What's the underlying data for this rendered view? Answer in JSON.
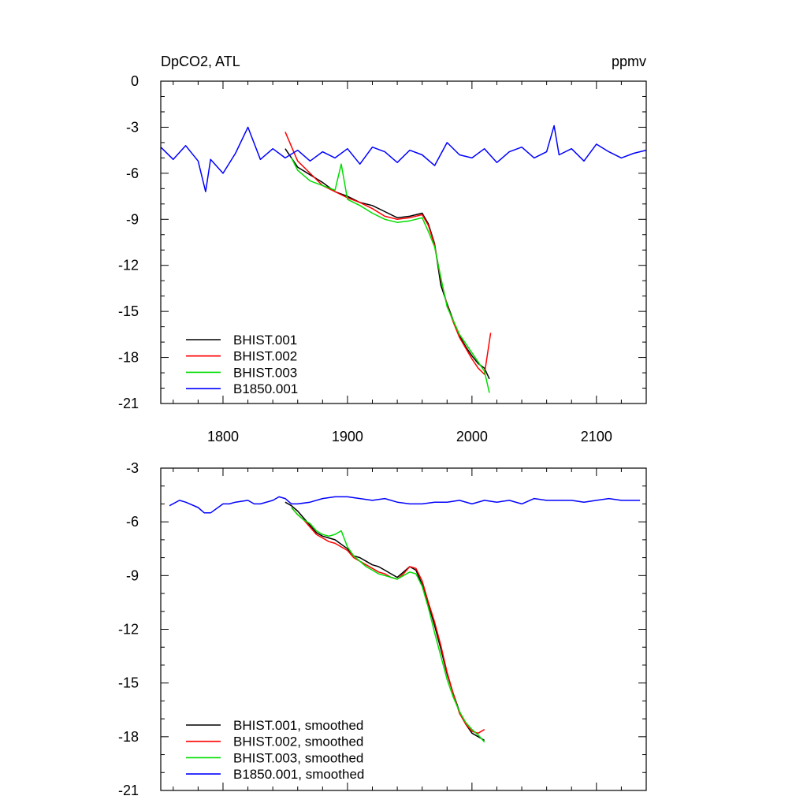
{
  "chart_data": [
    {
      "type": "line",
      "title_left": "DpCO2, ATL",
      "title_right": "ppmv",
      "xlim": [
        1750,
        2140
      ],
      "ylim": [
        -21,
        0
      ],
      "x_ticks": [
        1800,
        1900,
        2000,
        2100
      ],
      "x_tick_labels": [
        "1800",
        "1900",
        "2000",
        "2100"
      ],
      "y_ticks": [
        0,
        -3,
        -6,
        -9,
        -12,
        -15,
        -18,
        -21
      ],
      "y_tick_labels": [
        "0",
        "-3",
        "-6",
        "-9",
        "-12",
        "-15",
        "-18",
        "-21"
      ],
      "legend_position": "bottom-left",
      "series": [
        {
          "name": "BHIST.001",
          "color": "#000000",
          "x": [
            1850,
            1860,
            1870,
            1880,
            1890,
            1900,
            1910,
            1920,
            1930,
            1940,
            1950,
            1960,
            1965,
            1970,
            1975,
            1980,
            1985,
            1990,
            1995,
            2000,
            2005,
            2010,
            2014
          ],
          "values": [
            -4.4,
            -5.6,
            -6.1,
            -6.6,
            -7.2,
            -7.5,
            -7.9,
            -8.1,
            -8.5,
            -8.9,
            -8.8,
            -8.6,
            -9.3,
            -10.6,
            -13.3,
            -14.5,
            -15.6,
            -16.6,
            -17.3,
            -17.9,
            -18.4,
            -18.7,
            -19.4
          ]
        },
        {
          "name": "BHIST.002",
          "color": "#ff0000",
          "x": [
            1850,
            1860,
            1870,
            1880,
            1890,
            1900,
            1910,
            1920,
            1930,
            1940,
            1950,
            1960,
            1965,
            1970,
            1975,
            1980,
            1985,
            1990,
            1995,
            2000,
            2005,
            2010,
            2015
          ],
          "values": [
            -3.3,
            -5.2,
            -6.0,
            -6.8,
            -7.2,
            -7.6,
            -7.9,
            -8.3,
            -8.8,
            -9.0,
            -8.9,
            -8.7,
            -9.4,
            -10.7,
            -12.9,
            -14.6,
            -15.7,
            -16.7,
            -17.4,
            -18.1,
            -18.7,
            -19.1,
            -16.4
          ]
        },
        {
          "name": "BHIST.003",
          "color": "#00dd00",
          "x": [
            1855,
            1860,
            1870,
            1880,
            1890,
            1895,
            1900,
            1910,
            1920,
            1930,
            1940,
            1950,
            1960,
            1965,
            1970,
            1975,
            1980,
            1985,
            1990,
            1995,
            2000,
            2005,
            2010,
            2014
          ],
          "values": [
            -5.0,
            -5.8,
            -6.5,
            -6.8,
            -7.1,
            -5.4,
            -7.7,
            -8.1,
            -8.6,
            -9.0,
            -9.2,
            -9.1,
            -8.9,
            -9.8,
            -10.8,
            -12.8,
            -14.7,
            -15.6,
            -16.5,
            -17.1,
            -17.7,
            -18.3,
            -18.9,
            -20.3
          ]
        },
        {
          "name": "B1850.001",
          "color": "#0000ff",
          "x": [
            1750,
            1760,
            1770,
            1780,
            1786,
            1790,
            1800,
            1810,
            1820,
            1830,
            1840,
            1850,
            1860,
            1870,
            1880,
            1890,
            1900,
            1910,
            1920,
            1930,
            1940,
            1950,
            1960,
            1970,
            1980,
            1990,
            2000,
            2010,
            2020,
            2030,
            2040,
            2050,
            2060,
            2066,
            2070,
            2080,
            2090,
            2100,
            2110,
            2120,
            2130,
            2140
          ],
          "values": [
            -4.3,
            -5.1,
            -4.2,
            -5.2,
            -7.2,
            -5.1,
            -6.0,
            -4.7,
            -3.0,
            -5.1,
            -4.4,
            -5.0,
            -4.5,
            -5.2,
            -4.6,
            -5.0,
            -4.4,
            -5.4,
            -4.3,
            -4.6,
            -5.3,
            -4.5,
            -4.8,
            -5.5,
            -4.0,
            -4.8,
            -5.0,
            -4.4,
            -5.3,
            -4.6,
            -4.3,
            -5.0,
            -4.6,
            -2.9,
            -4.8,
            -4.4,
            -5.2,
            -4.1,
            -4.6,
            -5.0,
            -4.7,
            -4.5
          ]
        }
      ]
    },
    {
      "type": "line",
      "xlim": [
        1750,
        2140
      ],
      "ylim": [
        -21,
        -3
      ],
      "x_ticks": [
        1800,
        1900,
        2000,
        2100
      ],
      "y_ticks": [
        -3,
        -6,
        -9,
        -12,
        -15,
        -18,
        -21
      ],
      "y_tick_labels": [
        "-3",
        "-6",
        "-9",
        "-12",
        "-15",
        "-18",
        "-21"
      ],
      "legend_position": "bottom-left",
      "series": [
        {
          "name": "BHIST.001, smoothed",
          "color": "#000000",
          "x": [
            1850,
            1855,
            1860,
            1865,
            1870,
            1875,
            1880,
            1885,
            1890,
            1900,
            1905,
            1910,
            1915,
            1920,
            1925,
            1930,
            1935,
            1940,
            1945,
            1950,
            1955,
            1960,
            1965,
            1970,
            1975,
            1980,
            1985,
            1990,
            1995,
            2000,
            2005,
            2010
          ],
          "values": [
            -4.9,
            -5.1,
            -5.4,
            -5.8,
            -6.2,
            -6.6,
            -6.8,
            -6.9,
            -7.0,
            -7.5,
            -7.9,
            -8.0,
            -8.2,
            -8.4,
            -8.5,
            -8.7,
            -8.9,
            -9.1,
            -8.8,
            -8.5,
            -8.7,
            -9.5,
            -10.6,
            -11.8,
            -13.1,
            -14.5,
            -15.6,
            -16.6,
            -17.3,
            -17.8,
            -18.0,
            -18.2
          ]
        },
        {
          "name": "BHIST.002, smoothed",
          "color": "#ff0000",
          "x": [
            1855,
            1860,
            1865,
            1870,
            1875,
            1880,
            1885,
            1890,
            1900,
            1905,
            1910,
            1915,
            1920,
            1925,
            1930,
            1935,
            1940,
            1945,
            1950,
            1955,
            1960,
            1965,
            1970,
            1975,
            1980,
            1985,
            1990,
            1995,
            2000,
            2005,
            2010
          ],
          "values": [
            -5.2,
            -5.6,
            -5.9,
            -6.3,
            -6.7,
            -6.9,
            -7.1,
            -7.2,
            -7.6,
            -8.0,
            -8.2,
            -8.4,
            -8.6,
            -8.8,
            -8.9,
            -9.1,
            -9.2,
            -8.9,
            -8.5,
            -8.6,
            -9.3,
            -10.5,
            -11.6,
            -12.9,
            -14.4,
            -15.6,
            -16.7,
            -17.3,
            -17.7,
            -17.8,
            -17.6
          ]
        },
        {
          "name": "BHIST.003, smoothed",
          "color": "#00dd00",
          "x": [
            1855,
            1860,
            1865,
            1870,
            1875,
            1880,
            1885,
            1890,
            1895,
            1900,
            1905,
            1910,
            1915,
            1920,
            1925,
            1930,
            1935,
            1940,
            1945,
            1950,
            1955,
            1960,
            1965,
            1970,
            1975,
            1980,
            1985,
            1990,
            1995,
            2000,
            2005,
            2010
          ],
          "values": [
            -5.2,
            -5.6,
            -5.9,
            -6.1,
            -6.5,
            -6.7,
            -6.8,
            -6.7,
            -6.5,
            -7.4,
            -7.9,
            -8.2,
            -8.5,
            -8.7,
            -8.9,
            -9.0,
            -9.1,
            -9.2,
            -9.0,
            -8.8,
            -8.9,
            -9.6,
            -10.8,
            -12.2,
            -13.5,
            -14.8,
            -15.8,
            -16.6,
            -17.2,
            -17.6,
            -17.9,
            -18.3
          ]
        },
        {
          "name": "B1850.001, smoothed",
          "color": "#0000ff",
          "x": [
            1757,
            1765,
            1770,
            1780,
            1785,
            1790,
            1800,
            1805,
            1810,
            1820,
            1825,
            1830,
            1840,
            1845,
            1850,
            1855,
            1860,
            1870,
            1880,
            1890,
            1900,
            1910,
            1920,
            1930,
            1940,
            1950,
            1960,
            1970,
            1980,
            1990,
            2000,
            2010,
            2020,
            2030,
            2040,
            2050,
            2060,
            2070,
            2080,
            2090,
            2100,
            2110,
            2120,
            2130,
            2135
          ],
          "values": [
            -5.1,
            -4.8,
            -4.9,
            -5.2,
            -5.5,
            -5.5,
            -5.0,
            -5.0,
            -4.9,
            -4.8,
            -5.0,
            -5.0,
            -4.8,
            -4.6,
            -4.7,
            -5.0,
            -5.0,
            -4.9,
            -4.7,
            -4.6,
            -4.6,
            -4.7,
            -4.8,
            -4.7,
            -4.9,
            -5.0,
            -5.0,
            -4.9,
            -4.9,
            -4.8,
            -5.0,
            -4.8,
            -4.9,
            -4.8,
            -5.0,
            -4.7,
            -4.8,
            -4.8,
            -4.8,
            -4.9,
            -4.8,
            -4.7,
            -4.8,
            -4.8,
            -4.8
          ]
        }
      ]
    }
  ]
}
